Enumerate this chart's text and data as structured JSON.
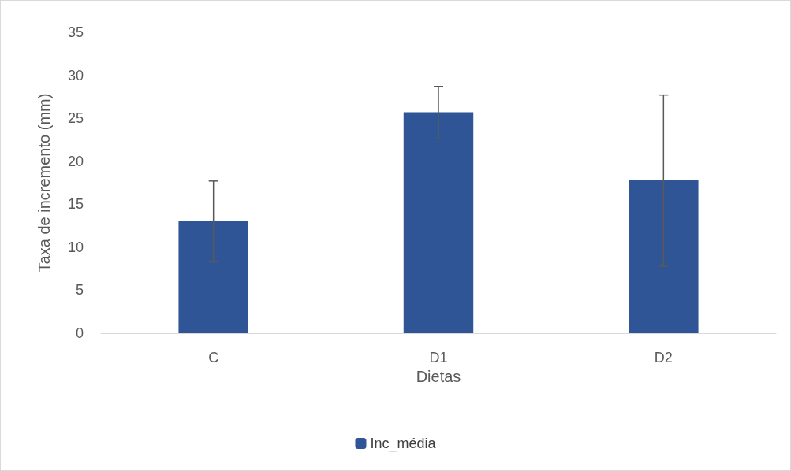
{
  "chart_data": {
    "type": "bar",
    "xlabel": "Dietas",
    "ylabel": "Taxa de incremento (mm)",
    "categories": [
      "C",
      "D1",
      "D2"
    ],
    "series": [
      {
        "name": "Inc_média",
        "color": "#2f5597",
        "values": [
          13.0,
          25.7,
          17.8
        ],
        "errors": [
          [
            8.3,
            17.7
          ],
          [
            22.6,
            28.7
          ],
          [
            7.8,
            27.7
          ]
        ]
      }
    ],
    "ylim": [
      0,
      35
    ],
    "yticks": [
      0,
      5,
      10,
      15,
      20,
      25,
      30,
      35
    ],
    "grid": false,
    "legend": "bottom"
  }
}
